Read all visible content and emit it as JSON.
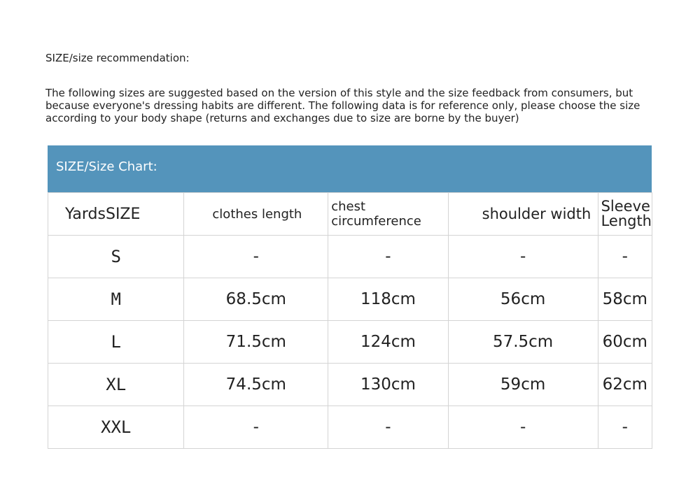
{
  "title": "SIZE/size recommendation:",
  "description": "The following sizes are suggested based on the version of this style and the size feedback from consumers, but because everyone's dressing habits are different. The following data is for reference only, please choose the size according to your body shape (returns and exchanges due to size are borne by the buyer)",
  "chart": {
    "banner": "SIZE/Size Chart:",
    "header_color": "#5494bb",
    "columns": [
      "YardsSIZE",
      "clothes length",
      "chest circumference",
      "shoulder width",
      "Sleeve Length"
    ],
    "rows": [
      [
        "S",
        "-",
        "-",
        "-",
        "-"
      ],
      [
        "M",
        "68.5cm",
        "118cm",
        "56cm",
        "58cm"
      ],
      [
        "L",
        "71.5cm",
        "124cm",
        "57.5cm",
        "60cm"
      ],
      [
        "XL",
        "74.5cm",
        "130cm",
        "59cm",
        "62cm"
      ],
      [
        "XXL",
        "-",
        "-",
        "-",
        "-"
      ]
    ]
  }
}
